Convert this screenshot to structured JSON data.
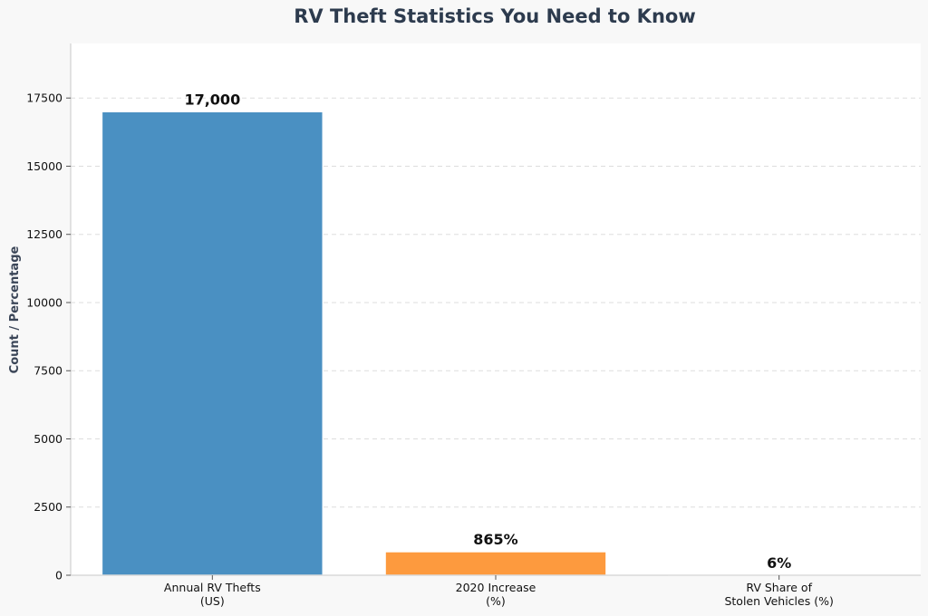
{
  "chart_data": {
    "type": "bar",
    "title": "RV Theft Statistics You Need to Know",
    "xlabel": "",
    "ylabel": "Count / Percentage",
    "ylim": [
      0,
      19500
    ],
    "yticks": [
      0,
      2500,
      5000,
      7500,
      10000,
      12500,
      15000,
      17500
    ],
    "grid": true,
    "categories": [
      [
        "Annual RV Thefts",
        "(US)"
      ],
      [
        "2020 Increase",
        "(%)"
      ],
      [
        "RV Share of",
        "Stolen Vehicles (%)"
      ]
    ],
    "values": [
      17000,
      865,
      6
    ],
    "data_labels": [
      "17,000",
      "865%",
      "6%"
    ],
    "colors": [
      "#4a90c2",
      "#fd9a3e",
      "#2ca02c"
    ]
  }
}
